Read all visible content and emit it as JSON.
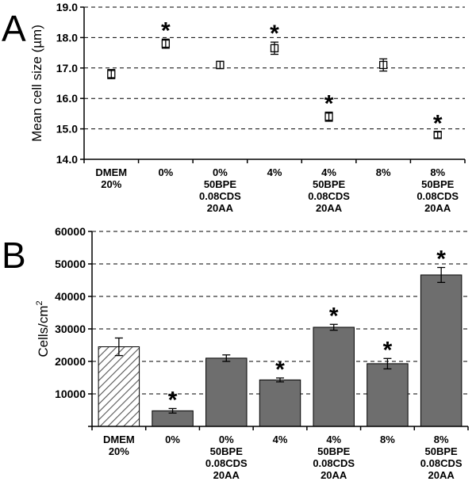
{
  "chart_data": [
    {
      "panel": "A",
      "type": "scatter",
      "ylabel": "Mean cell size (µm)",
      "ylim": [
        14.0,
        19.0
      ],
      "yticks": [
        "14.0",
        "15.0",
        "16.0",
        "17.0",
        "18.0",
        "19.0"
      ],
      "grid": true,
      "categories": [
        [
          "DMEM",
          "20%"
        ],
        [
          "0%"
        ],
        [
          "0%",
          "50BPE",
          "0.08CDS",
          "20AA"
        ],
        [
          "4%"
        ],
        [
          "4%",
          "50BPE",
          "0.08CDS",
          "20AA"
        ],
        [
          "8%"
        ],
        [
          "8%",
          "50BPE",
          "0.08CDS",
          "20AA"
        ]
      ],
      "values": [
        16.8,
        17.8,
        17.1,
        17.65,
        15.4,
        17.1,
        14.8
      ],
      "errors": [
        0.15,
        0.15,
        0.12,
        0.2,
        0.15,
        0.2,
        0.1
      ],
      "significant": [
        false,
        true,
        false,
        true,
        true,
        false,
        true
      ],
      "marker_symbol": "*"
    },
    {
      "panel": "B",
      "type": "bar",
      "ylabel": "Cells/cm",
      "ylabel_superscript": "2",
      "ylim": [
        0,
        60000
      ],
      "yticks": [
        "10000",
        "20000",
        "30000",
        "40000",
        "50000",
        "60000"
      ],
      "grid": true,
      "categories": [
        [
          "DMEM",
          "20%"
        ],
        [
          "0%"
        ],
        [
          "0%",
          "50BPE",
          "0.08CDS",
          "20AA"
        ],
        [
          "4%"
        ],
        [
          "4%",
          "50BPE",
          "0.08CDS",
          "20AA"
        ],
        [
          "8%"
        ],
        [
          "8%",
          "50BPE",
          "0.08CDS",
          "20AA"
        ]
      ],
      "values": [
        24500,
        4800,
        21000,
        14300,
        30500,
        19300,
        46600
      ],
      "errors": [
        2700,
        700,
        1000,
        600,
        900,
        1600,
        2300
      ],
      "significant": [
        false,
        true,
        false,
        true,
        true,
        true,
        true
      ],
      "hatched": [
        true,
        false,
        false,
        false,
        false,
        false,
        false
      ],
      "bar_color": "#6e6e6e",
      "marker_symbol": "*"
    }
  ]
}
